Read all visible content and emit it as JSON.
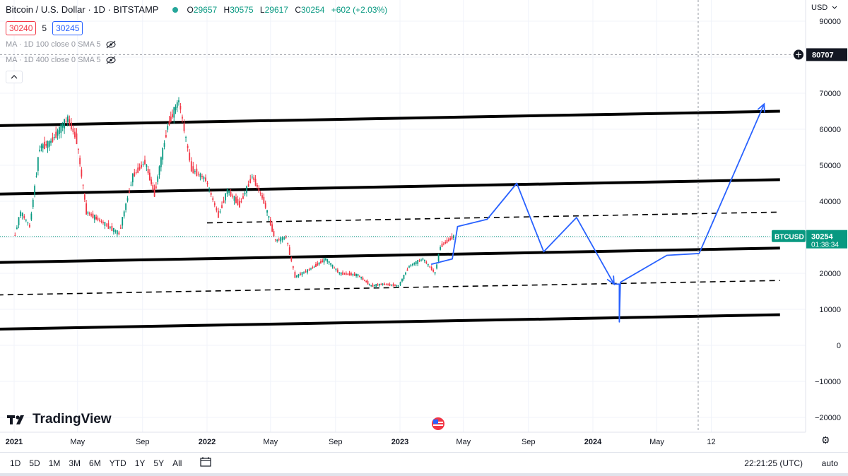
{
  "header": {
    "symbol_title": "Bitcoin / U.S. Dollar · 1D · BITSTAMP",
    "ohlc": {
      "o_label": "O",
      "o": "29657",
      "h_label": "H",
      "h": "30575",
      "l_label": "L",
      "l": "29617",
      "c_label": "C",
      "c": "30254",
      "change": "+602 (+2.03%)"
    }
  },
  "price_boxes": {
    "bid": "30240",
    "spread": "5",
    "ask": "30245"
  },
  "indicators": [
    {
      "label": "MA · 1D 100 close 0 SMA 5"
    },
    {
      "label": "MA · 1D 400 close 0 SMA 5"
    }
  ],
  "axis": {
    "currency": "USD",
    "crosshair_price": "80707",
    "last_price_symbol": "BTCUSD",
    "last_price": "30254",
    "countdown": "01:38:34"
  },
  "bottom_toolbar": {
    "ranges": [
      "1D",
      "5D",
      "1M",
      "3M",
      "6M",
      "YTD",
      "1Y",
      "5Y",
      "All"
    ],
    "clock": "22:21:25 (UTC)",
    "scale_mode": "auto"
  },
  "branding": {
    "logo_text": "TradingView"
  },
  "colors": {
    "up": "#089981",
    "down": "#f23645",
    "projection": "#2962ff",
    "trend": "#000000",
    "last_price_bg": "#089981"
  },
  "chart_data": {
    "type": "line",
    "x_scale": "time",
    "y_scale": "linear",
    "x_ticks": [
      "2021",
      "May",
      "Sep",
      "2022",
      "May",
      "Sep",
      "2023",
      "May",
      "Sep",
      "2024",
      "May",
      "12"
    ],
    "x_tick_dates": [
      "2021-01-01",
      "2021-05-01",
      "2021-09-01",
      "2022-01-01",
      "2022-05-01",
      "2022-09-01",
      "2023-01-01",
      "2023-05-01",
      "2023-09-01",
      "2024-01-01",
      "2024-05-01",
      "2024-08-12"
    ],
    "y_ticks": [
      90000,
      80000,
      70000,
      60000,
      50000,
      40000,
      30000,
      20000,
      10000,
      0,
      -10000,
      -20000
    ],
    "ylim": [
      -22000,
      96000
    ],
    "price_series": {
      "x": [
        "2021-01-01",
        "2021-01-15",
        "2021-02-01",
        "2021-02-20",
        "2021-03-10",
        "2021-04-14",
        "2021-05-01",
        "2021-05-19",
        "2021-06-10",
        "2021-07-20",
        "2021-08-15",
        "2021-09-07",
        "2021-09-25",
        "2021-10-20",
        "2021-11-10",
        "2021-12-04",
        "2021-12-31",
        "2022-01-24",
        "2022-02-10",
        "2022-03-05",
        "2022-03-29",
        "2022-04-20",
        "2022-05-12",
        "2022-06-01",
        "2022-06-18",
        "2022-07-15",
        "2022-08-15",
        "2022-09-10",
        "2022-10-15",
        "2022-11-09",
        "2022-12-01",
        "2022-12-31",
        "2023-01-20",
        "2023-02-15",
        "2023-03-10",
        "2023-03-20",
        "2023-04-14"
      ],
      "y": [
        29000,
        37000,
        33000,
        55000,
        56000,
        63000,
        57000,
        37000,
        35000,
        31000,
        47000,
        51000,
        42000,
        61000,
        68000,
        49000,
        46000,
        36000,
        43000,
        39000,
        47000,
        40000,
        29000,
        30000,
        19000,
        21000,
        24000,
        20000,
        19500,
        16500,
        17000,
        16500,
        22000,
        24000,
        20000,
        27500,
        30254
      ]
    },
    "trend_lines": [
      {
        "style": "solid",
        "x": [
          "2020-12-01",
          "2024-12-20"
        ],
        "y": [
          61000,
          65000
        ]
      },
      {
        "style": "solid",
        "x": [
          "2020-12-01",
          "2024-12-20"
        ],
        "y": [
          42000,
          46000
        ]
      },
      {
        "style": "solid",
        "x": [
          "2020-12-01",
          "2024-12-20"
        ],
        "y": [
          23000,
          27000
        ]
      },
      {
        "style": "solid",
        "x": [
          "2020-12-01",
          "2024-12-20"
        ],
        "y": [
          4500,
          8500
        ]
      },
      {
        "style": "dashed",
        "x": [
          "2022-01-01",
          "2024-12-20"
        ],
        "y": [
          34000,
          37000
        ]
      },
      {
        "style": "dashed",
        "x": [
          "2020-12-01",
          "2024-12-20"
        ],
        "y": [
          14000,
          18000
        ]
      }
    ],
    "projection": {
      "x": [
        "2023-03-01",
        "2023-04-10",
        "2023-04-20",
        "2023-06-15",
        "2023-08-10",
        "2023-09-30",
        "2023-12-01",
        "2024-02-10",
        "2024-02-20",
        "2024-02-20",
        "2024-02-22",
        "2024-05-20",
        "2024-07-20",
        "2024-11-20"
      ],
      "y": [
        22500,
        24000,
        33000,
        35000,
        45000,
        26000,
        35500,
        17000,
        17000,
        6500,
        17500,
        25000,
        25500,
        67000
      ]
    }
  }
}
